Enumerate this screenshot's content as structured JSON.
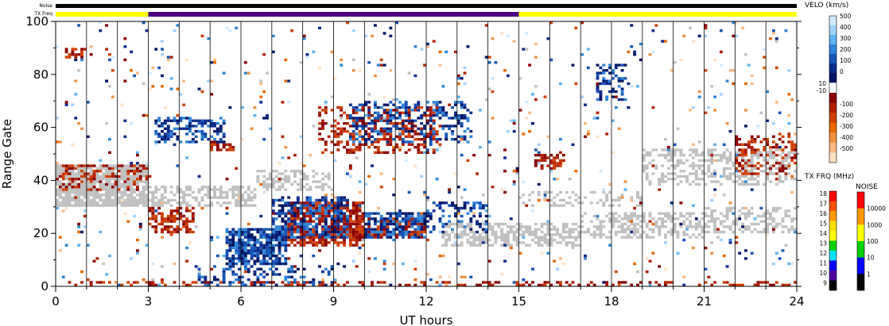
{
  "chart_data": {
    "type": "heatmap",
    "title": "",
    "xlabel": "UT hours",
    "ylabel": "Range Gate",
    "xlim": [
      0,
      24
    ],
    "ylim": [
      0,
      100
    ],
    "x_ticks": [
      0,
      3,
      6,
      9,
      12,
      15,
      18,
      21,
      24
    ],
    "y_ticks": [
      0,
      20,
      40,
      60,
      80,
      100
    ],
    "status_bars": {
      "noise_label": "Noise",
      "txfreq_label": "TX Freq",
      "txfreq_segments": [
        {
          "start": 0,
          "end": 3,
          "color": "#ffff00"
        },
        {
          "start": 3,
          "end": 15,
          "color": "#4b0082"
        },
        {
          "start": 15,
          "end": 24,
          "color": "#ffff00"
        }
      ]
    },
    "velocity_scale": {
      "label": "VELO (km/s)",
      "ticks": [
        "500",
        "400",
        "300",
        "200",
        "100",
        "0",
        "10",
        "-10",
        "-100",
        "-200",
        "-300",
        "-400",
        "-500"
      ],
      "positive_colors": [
        "#cfe9ff",
        "#9fd0ff",
        "#5fb2f0",
        "#2e86d8",
        "#1555b8",
        "#0a2a8a",
        "#001466"
      ],
      "negative_colors": [
        "#8a0000",
        "#b02000",
        "#d04000",
        "#e86800",
        "#f09040",
        "#f8b880",
        "#fde0c0"
      ],
      "ground_scatter_color": "#c0c0c0"
    },
    "txfreq_scale": {
      "label": "TX FRQ (MHz)",
      "ticks": [
        "18",
        "17",
        "16",
        "15",
        "14",
        "13",
        "12",
        "11",
        "10",
        "9"
      ],
      "colors": [
        "#ff0000",
        "#ff5000",
        "#ff9900",
        "#ffdd00",
        "#ffff00",
        "#00d000",
        "#00e0ff",
        "#0000ff",
        "#5000a0",
        "#000000"
      ]
    },
    "noise_scale": {
      "label": "NOISE",
      "ticks": [
        "10000",
        "1000",
        "100",
        "10",
        "1"
      ],
      "colors": [
        "#ff0000",
        "#ff9900",
        "#ffff00",
        "#00d000",
        "#0000ff",
        "#000000"
      ]
    },
    "regions": [
      {
        "kind": "ground",
        "t0": 0.0,
        "t1": 3.0,
        "g0": 30,
        "g1": 46,
        "density": 0.85
      },
      {
        "kind": "ground",
        "t0": 3.0,
        "t1": 6.5,
        "g0": 30,
        "g1": 38,
        "density": 0.55
      },
      {
        "kind": "ground",
        "t0": 6.5,
        "t1": 9.0,
        "g0": 36,
        "g1": 44,
        "density": 0.45
      },
      {
        "kind": "ground",
        "t0": 12.5,
        "t1": 17.0,
        "g0": 15,
        "g1": 24,
        "density": 0.55
      },
      {
        "kind": "ground",
        "t0": 17.0,
        "t1": 21.0,
        "g0": 18,
        "g1": 28,
        "density": 0.45
      },
      {
        "kind": "ground",
        "t0": 19.0,
        "t1": 24.0,
        "g0": 38,
        "g1": 52,
        "density": 0.45
      },
      {
        "kind": "ground",
        "t0": 21.0,
        "t1": 24.0,
        "g0": 20,
        "g1": 30,
        "density": 0.45
      },
      {
        "kind": "ground",
        "t0": 15.0,
        "t1": 19.0,
        "g0": 30,
        "g1": 36,
        "density": 0.3
      },
      {
        "kind": "neg",
        "t0": 0.0,
        "t1": 3.0,
        "g0": 36,
        "g1": 46,
        "density": 0.3
      },
      {
        "kind": "neg",
        "t0": 3.0,
        "t1": 4.5,
        "g0": 20,
        "g1": 30,
        "density": 0.55
      },
      {
        "kind": "neg",
        "t0": 7.5,
        "t1": 10.0,
        "g0": 15,
        "g1": 32,
        "density": 0.7
      },
      {
        "kind": "neg",
        "t0": 9.0,
        "t1": 12.0,
        "g0": 18,
        "g1": 26,
        "density": 0.65
      },
      {
        "kind": "neg",
        "t0": 8.5,
        "t1": 12.5,
        "g0": 50,
        "g1": 68,
        "density": 0.35
      },
      {
        "kind": "neg",
        "t0": 15.5,
        "t1": 16.5,
        "g0": 44,
        "g1": 50,
        "density": 0.7
      },
      {
        "kind": "neg",
        "t0": 0.3,
        "t1": 1.2,
        "g0": 86,
        "g1": 90,
        "density": 0.5
      },
      {
        "kind": "neg",
        "t0": 5.0,
        "t1": 5.8,
        "g0": 51,
        "g1": 55,
        "density": 0.7
      },
      {
        "kind": "neg",
        "t0": 22.0,
        "t1": 24.0,
        "g0": 42,
        "g1": 58,
        "density": 0.3
      },
      {
        "kind": "neg",
        "t0": 0.0,
        "t1": 24.0,
        "g0": 0,
        "g1": 2,
        "density": 0.3
      },
      {
        "kind": "pos",
        "t0": 5.5,
        "t1": 7.5,
        "g0": 8,
        "g1": 22,
        "density": 0.8
      },
      {
        "kind": "pos",
        "t0": 7.0,
        "t1": 9.5,
        "g0": 18,
        "g1": 34,
        "density": 0.55
      },
      {
        "kind": "pos",
        "t0": 10.0,
        "t1": 12.0,
        "g0": 18,
        "g1": 28,
        "density": 0.6
      },
      {
        "kind": "pos",
        "t0": 3.2,
        "t1": 5.5,
        "g0": 54,
        "g1": 64,
        "density": 0.45
      },
      {
        "kind": "pos",
        "t0": 9.5,
        "t1": 13.5,
        "g0": 54,
        "g1": 70,
        "density": 0.35
      },
      {
        "kind": "pos",
        "t0": 17.5,
        "t1": 18.5,
        "g0": 70,
        "g1": 84,
        "density": 0.45
      },
      {
        "kind": "pos",
        "t0": 4.5,
        "t1": 9.0,
        "g0": 0,
        "g1": 8,
        "density": 0.25
      },
      {
        "kind": "pos",
        "t0": 12.0,
        "t1": 14.0,
        "g0": 20,
        "g1": 32,
        "density": 0.3
      }
    ],
    "sparse_density": 0.03
  }
}
